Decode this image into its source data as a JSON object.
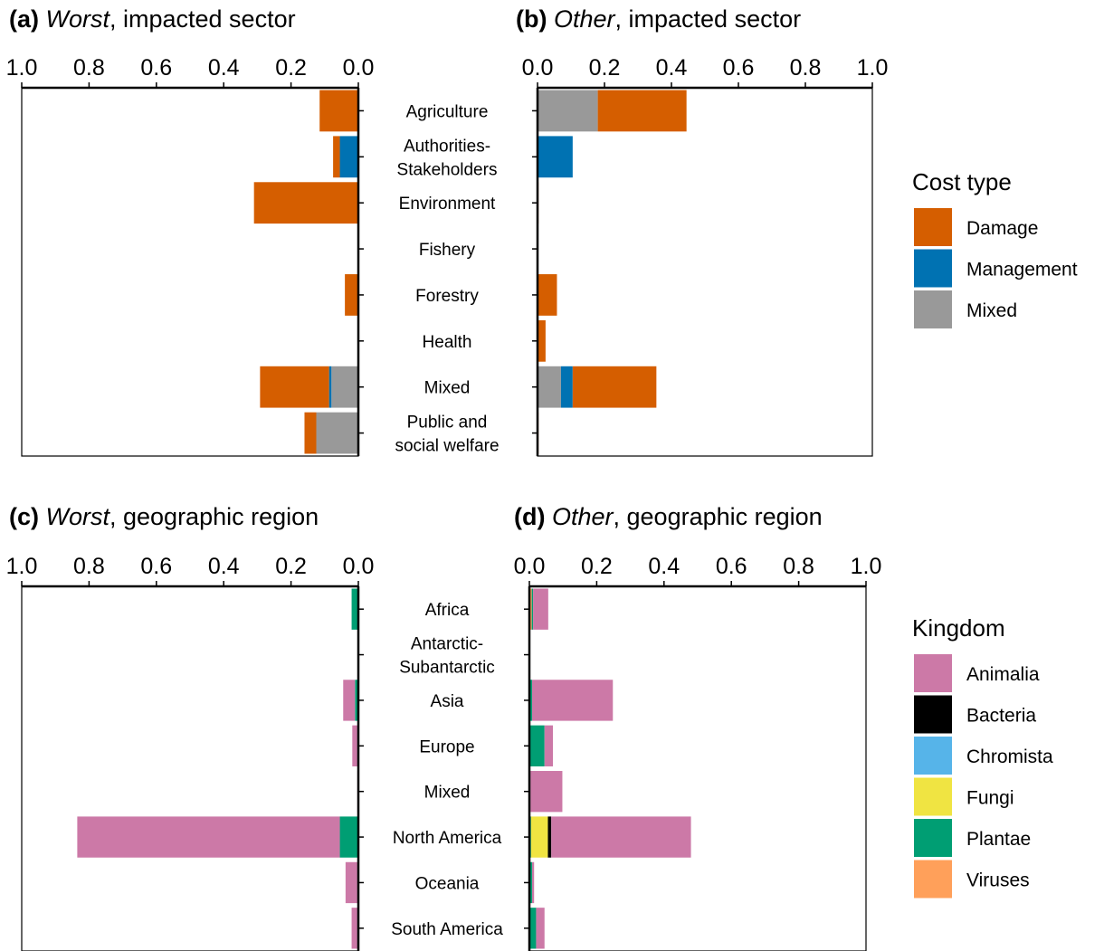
{
  "colors": {
    "Damage": "#D55E00",
    "Management": "#0072B2",
    "Mixed": "#999999",
    "Animalia": "#CC79A7",
    "Bacteria": "#000000",
    "Chromista": "#56B4E9",
    "Fungi": "#F0E442",
    "Plantae": "#009E73",
    "Viruses": "#FFA05A"
  },
  "legends": [
    {
      "title": "Cost type",
      "items": [
        "Damage",
        "Management",
        "Mixed"
      ]
    },
    {
      "title": "Kingdom",
      "items": [
        "Animalia",
        "Bacteria",
        "Chromista",
        "Fungi",
        "Plantae",
        "Viruses"
      ]
    }
  ],
  "chart_data": [
    {
      "type": "bar",
      "orientation": "horizontal-stacked",
      "direction": "reversed",
      "title_tag": "(a)",
      "title_em": "Worst",
      "title_rest": ", impacted sector",
      "xlim": [
        0,
        1.0
      ],
      "xticks": [
        "1.0",
        "0.8",
        "0.6",
        "0.4",
        "0.2",
        "0.0"
      ],
      "categories": [
        "Agriculture",
        "Authorities-\nStakeholders",
        "Environment",
        "Fishery",
        "Forestry",
        "Health",
        "Mixed",
        "Public and\nsocial welfare"
      ],
      "series": [
        {
          "name": "Mixed",
          "values": [
            0,
            0,
            0,
            0,
            0,
            0,
            0.08,
            0.125
          ]
        },
        {
          "name": "Management",
          "values": [
            0,
            0.055,
            0,
            0,
            0,
            0,
            0.007,
            0
          ]
        },
        {
          "name": "Damage",
          "values": [
            0.115,
            0.02,
            0.31,
            0,
            0.04,
            0,
            0.205,
            0.035
          ]
        }
      ]
    },
    {
      "type": "bar",
      "orientation": "horizontal-stacked",
      "direction": "normal",
      "title_tag": "(b)",
      "title_em": "Other",
      "title_rest": ", impacted sector",
      "xlim": [
        0,
        1.0
      ],
      "xticks": [
        "0.0",
        "0.2",
        "0.4",
        "0.6",
        "0.8",
        "1.0"
      ],
      "categories": [
        "Agriculture",
        "Authorities-\nStakeholders",
        "Environment",
        "Fishery",
        "Forestry",
        "Health",
        "Mixed",
        "Public and\nsocial welfare"
      ],
      "series": [
        {
          "name": "Mixed",
          "values": [
            0.18,
            0,
            0,
            0,
            0,
            0,
            0.07,
            0
          ]
        },
        {
          "name": "Management",
          "values": [
            0,
            0.105,
            0,
            0,
            0,
            0,
            0.035,
            0
          ]
        },
        {
          "name": "Damage",
          "values": [
            0.265,
            0,
            0.003,
            0,
            0.058,
            0.024,
            0.25,
            0.003
          ]
        }
      ]
    },
    {
      "type": "bar",
      "orientation": "horizontal-stacked",
      "direction": "reversed",
      "title_tag": "(c)",
      "title_em": "Worst",
      "title_rest": ", geographic region",
      "xlim": [
        0,
        1.0
      ],
      "xticks": [
        "1.0",
        "0.8",
        "0.6",
        "0.4",
        "0.2",
        "0.0"
      ],
      "categories": [
        "Africa",
        "Antarctic-\nSubantarctic",
        "Asia",
        "Europe",
        "Mixed",
        "North America",
        "Oceania",
        "South America"
      ],
      "series": [
        {
          "name": "Plantae",
          "values": [
            0.02,
            0,
            0.01,
            0.003,
            0,
            0.055,
            0.003,
            0.003
          ]
        },
        {
          "name": "Animalia",
          "values": [
            0,
            0,
            0.035,
            0.015,
            0.003,
            0.78,
            0.035,
            0.017
          ]
        }
      ]
    },
    {
      "type": "bar",
      "orientation": "horizontal-stacked",
      "direction": "normal",
      "title_tag": "(d)",
      "title_em": "Other",
      "title_rest": ", geographic region",
      "xlim": [
        0,
        1.0
      ],
      "xticks": [
        "0.0",
        "0.2",
        "0.4",
        "0.6",
        "0.8",
        "1.0"
      ],
      "categories": [
        "Africa",
        "Antarctic-\nSubantarctic",
        "Asia",
        "Europe",
        "Mixed",
        "North America",
        "Oceania",
        "South America"
      ],
      "series": [
        {
          "name": "Viruses",
          "values": [
            0.007,
            0,
            0,
            0,
            0,
            0,
            0,
            0
          ]
        },
        {
          "name": "Plantae",
          "values": [
            0.004,
            0,
            0.008,
            0.045,
            0.003,
            0.005,
            0.008,
            0.02
          ]
        },
        {
          "name": "Fungi",
          "values": [
            0,
            0,
            0,
            0,
            0,
            0.05,
            0,
            0
          ]
        },
        {
          "name": "Bacteria",
          "values": [
            0,
            0,
            0,
            0,
            0,
            0.01,
            0,
            0
          ]
        },
        {
          "name": "Animalia",
          "values": [
            0.045,
            0,
            0.24,
            0.025,
            0.095,
            0.415,
            0.006,
            0.025
          ]
        }
      ]
    }
  ]
}
